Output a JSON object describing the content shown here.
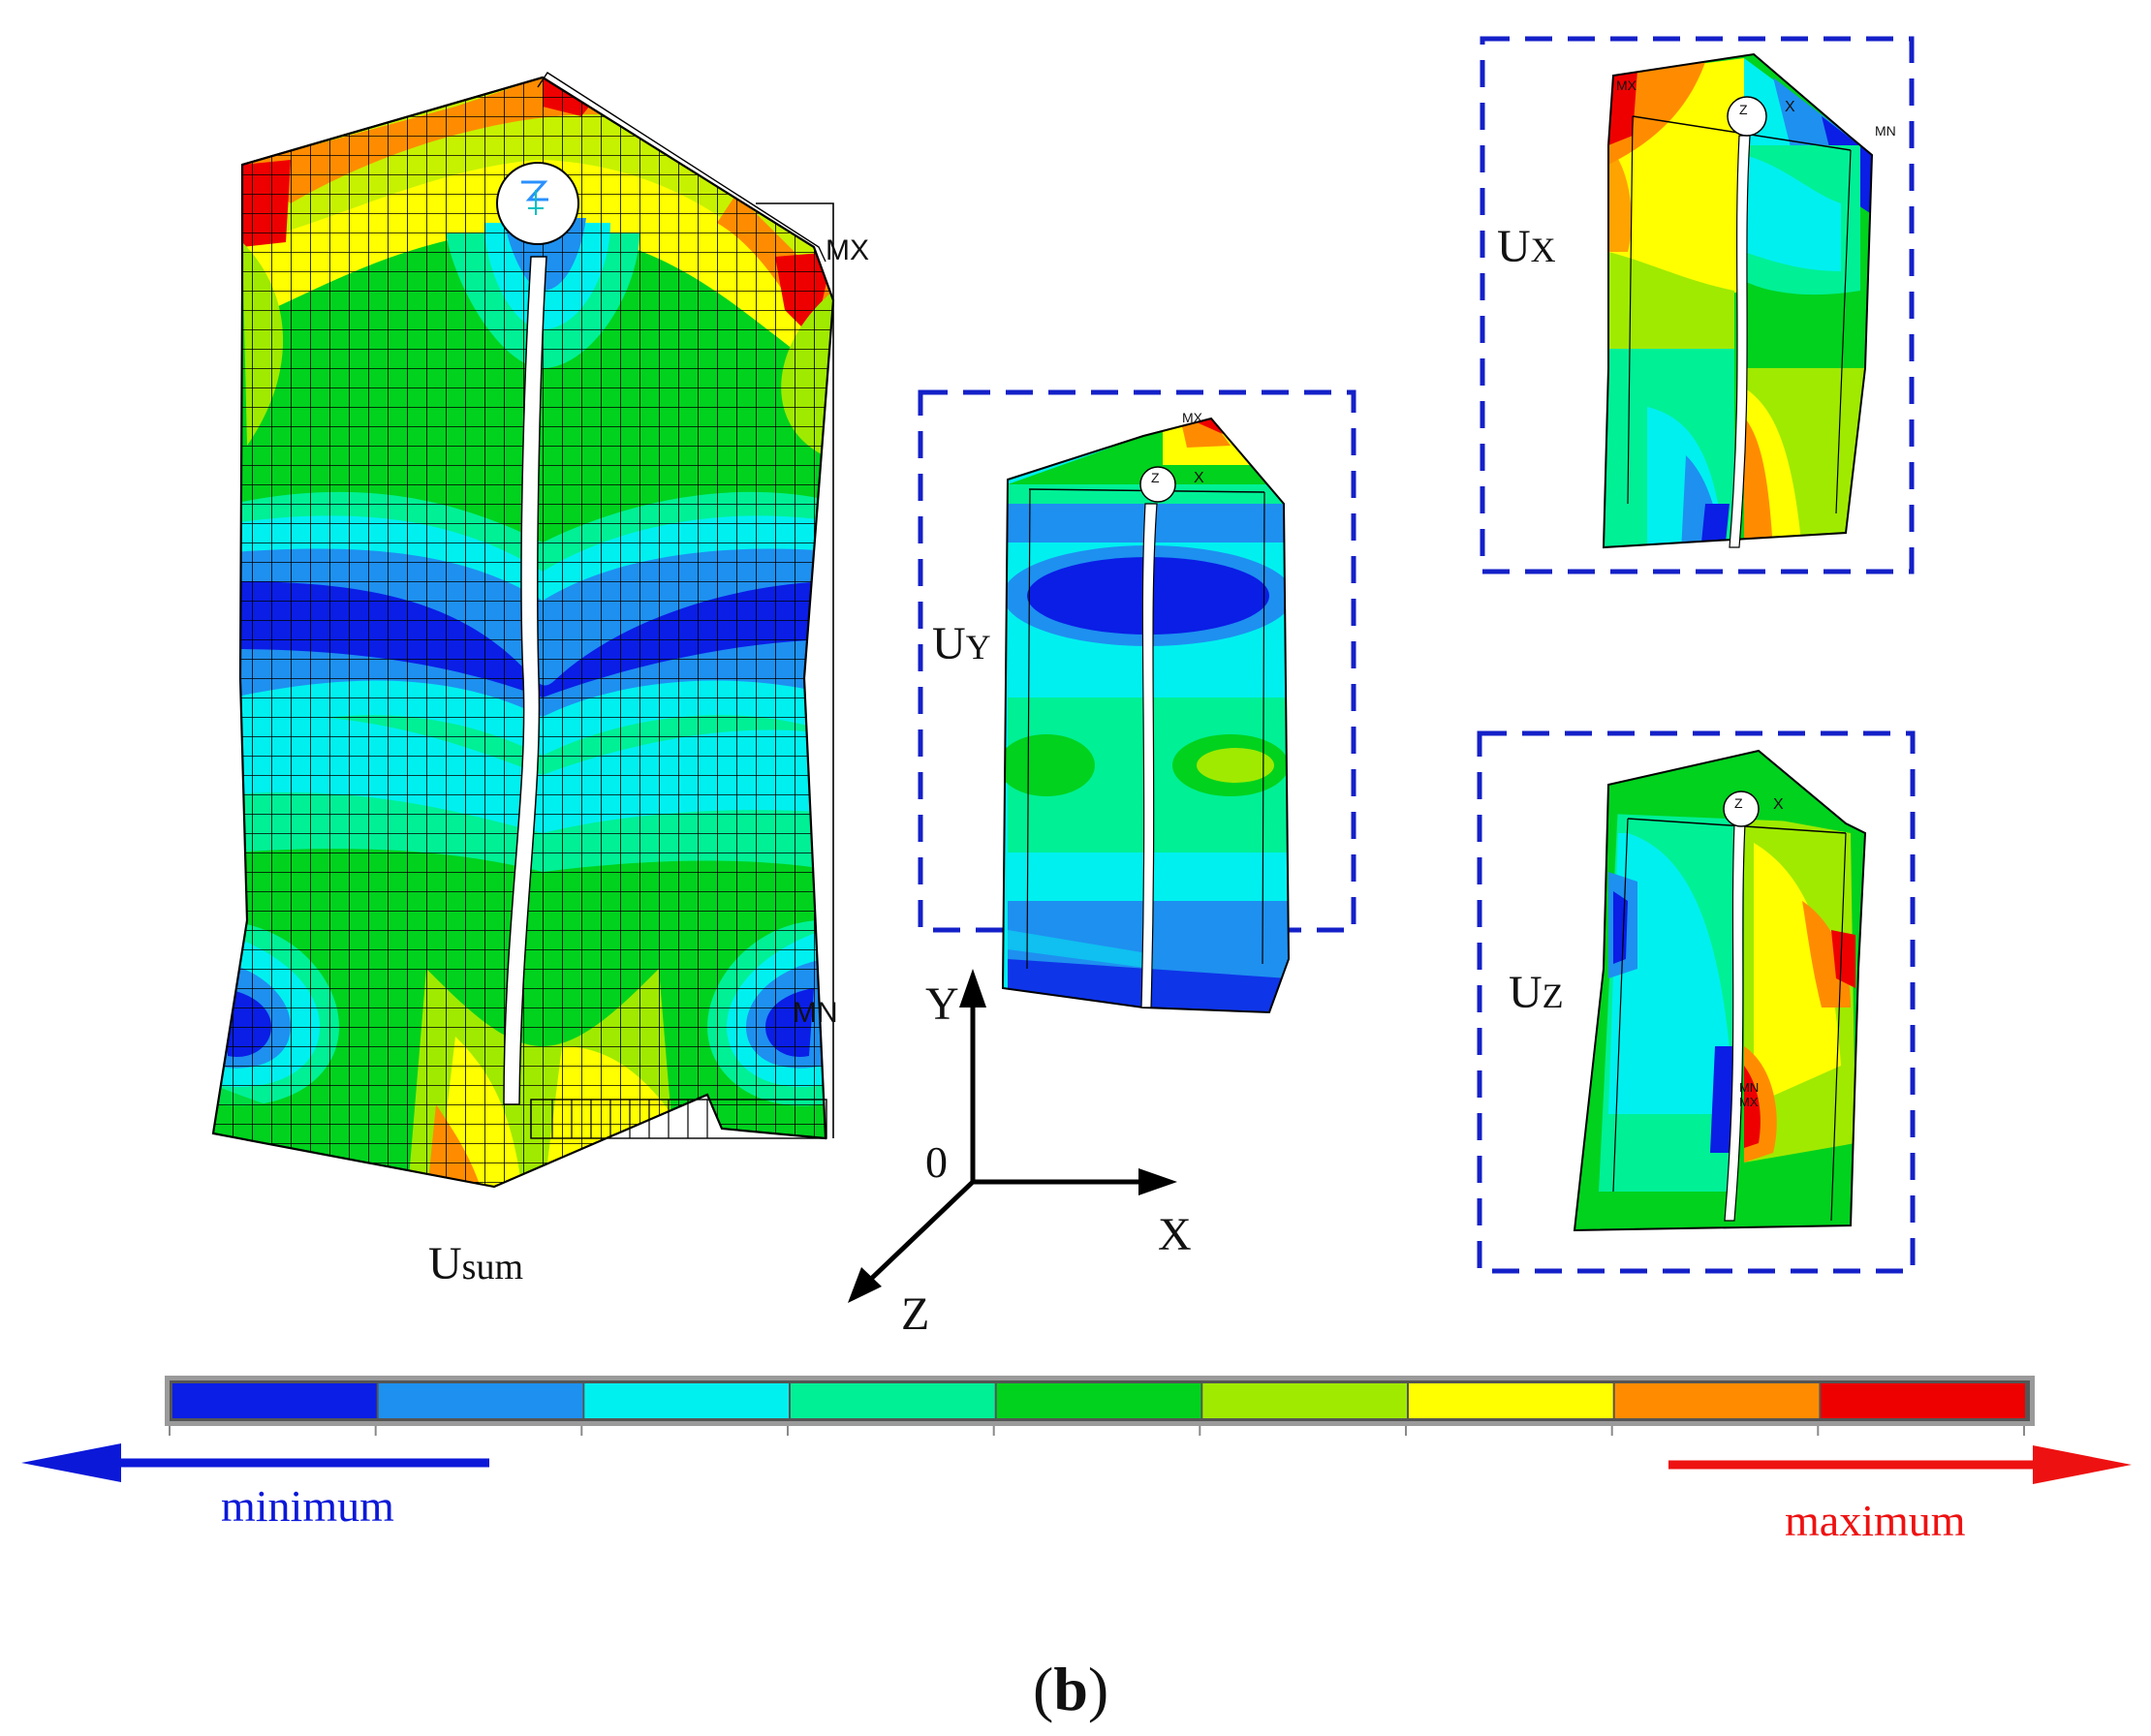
{
  "labels": {
    "usum": {
      "main": "U",
      "sub": "sum"
    },
    "ux": {
      "main": "U",
      "sub": "X"
    },
    "uy": {
      "main": "U",
      "sub": "Y"
    },
    "uz": {
      "main": "U",
      "sub": "Z"
    }
  },
  "mesh_tags": {
    "usum_mx": "MX",
    "usum_mn": "MN",
    "ux_mx": "MX",
    "ux_mn": "MN",
    "uy_mx": "MX",
    "uz_mn": "MN",
    "uz_mx": "MX",
    "triad_z": "Z",
    "triad_x": "X"
  },
  "axes": {
    "y": "Y",
    "x": "X",
    "z": "Z",
    "origin": "0"
  },
  "legend": {
    "min_label": "minimum",
    "max_label": "maximum",
    "min_color": "#0b18d8",
    "max_color": "#ee1111",
    "colors": [
      "#0a1ee6",
      "#1e90f0",
      "#00f0f0",
      "#00f096",
      "#00d21e",
      "#a0ea00",
      "#ffff00",
      "#ff8c00",
      "#ee0000"
    ]
  },
  "panel_label": "(b)",
  "colors": {
    "box_dash": "#1420c8"
  }
}
